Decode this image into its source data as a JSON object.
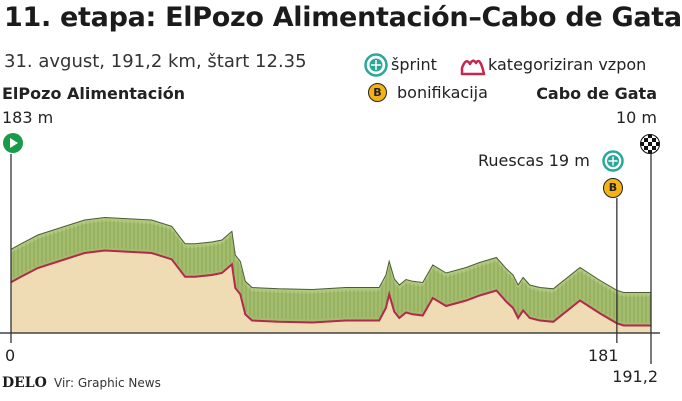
{
  "header": {
    "title": "11. etapa: ElPozo Alimentación–Cabo de Gata",
    "subtitle": "31. avgust, 191,2 km, štart 12.35"
  },
  "legend": {
    "sprint": "šprint",
    "climb": "kategoriziran vzpon",
    "bonus": "bonifikacija",
    "bonus_symbol": "B"
  },
  "start": {
    "name": "ElPozo Alimentación",
    "altitude": "183 m"
  },
  "finish": {
    "name": "Cabo de Gata",
    "altitude": "10 m"
  },
  "sprint_point": {
    "label": "Ruescas 19 m"
  },
  "footer": {
    "brand": "DELO",
    "source": "Vir: Graphic News"
  },
  "colors": {
    "sprint": "#2aa79b",
    "climb": "#c4284a",
    "bonus": "#f3b21a",
    "start_flag": "#1a9b4b",
    "profile_fill": "#efdcb5",
    "profile_top": "#a9c46f",
    "profile_side": "#6f7d58",
    "profile_line": "#b02a4b"
  },
  "chart_data": {
    "type": "area",
    "xlabel": "",
    "ylabel": "",
    "x_ticks": [
      "0",
      "181",
      "191,2"
    ],
    "x_range": [
      0,
      191.2
    ],
    "grid": false,
    "profile": {
      "km": [
        0,
        3,
        8,
        15,
        22,
        28,
        35,
        42,
        48,
        52,
        55,
        60,
        63,
        66,
        67,
        68.5,
        70,
        72,
        75,
        80,
        90,
        100,
        110,
        112,
        113,
        114.5,
        116,
        118,
        120,
        123,
        126,
        130,
        136,
        140,
        145,
        148,
        150,
        151.5,
        153,
        155,
        158,
        162,
        170,
        176,
        181,
        183,
        186,
        191.2
      ],
      "elevation": [
        183,
        205,
        240,
        270,
        300,
        310,
        305,
        300,
        275,
        205,
        205,
        212,
        220,
        255,
        160,
        135,
        55,
        30,
        28,
        25,
        22,
        30,
        30,
        80,
        135,
        65,
        40,
        62,
        55,
        50,
        120,
        88,
        110,
        130,
        150,
        105,
        80,
        40,
        70,
        40,
        30,
        25,
        110,
        58,
        19,
        10,
        10,
        10
      ]
    },
    "sprints": [
      {
        "km": 181,
        "name": "Ruescas 19 m"
      }
    ],
    "bonifications": [
      {
        "km": 181
      }
    ]
  }
}
